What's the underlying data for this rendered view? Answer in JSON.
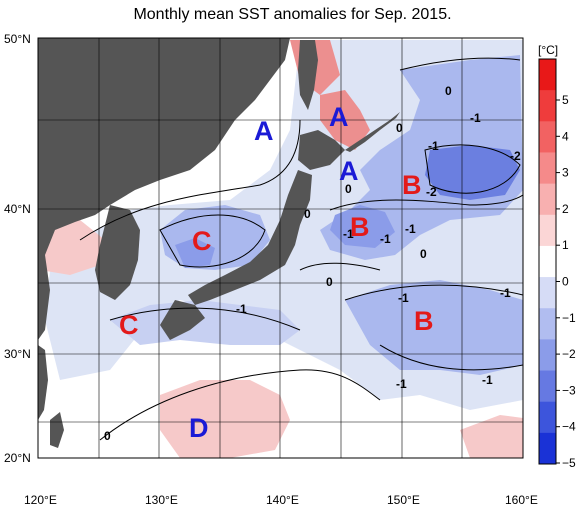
{
  "title": "Monthly mean SST anomalies for Sep. 2015.",
  "colors": {
    "land": "#555555",
    "warm_light": "#f6c9c9",
    "warm_mid": "#ec8f8f",
    "cool_light": "#dde4f5",
    "cool_mid": "#aab8ee",
    "cool_dark": "#6b7fe0",
    "region_A": "#1a1ad6",
    "region_B": "#e31a1a",
    "region_C": "#e31a1a",
    "region_D": "#1a1ad6"
  },
  "axes": {
    "lat_ticks": [
      "50°N",
      "40°N",
      "30°N",
      "20°N"
    ],
    "lon_ticks": [
      "120°E",
      "130°E",
      "140°E",
      "150°E",
      "160°E"
    ]
  },
  "colorbar": {
    "unit": "[°C]",
    "labels": [
      "5",
      "4",
      "3",
      "2",
      "1",
      "0",
      "−1",
      "−2",
      "−3",
      "−4",
      "−5"
    ],
    "colors": [
      "#e81818",
      "#ef3c3c",
      "#f26262",
      "#f58a8a",
      "#f8b0b0",
      "#fbd6d6",
      "#ffffff",
      "#d6dcf6",
      "#b1bdf0",
      "#8b9ce9",
      "#6679e2",
      "#3d55dc",
      "#1a32d6"
    ]
  },
  "region_labels": [
    {
      "text": "A",
      "type": "A"
    },
    {
      "text": "A",
      "type": "A"
    },
    {
      "text": "A",
      "type": "A"
    },
    {
      "text": "B",
      "type": "B"
    },
    {
      "text": "B",
      "type": "B"
    },
    {
      "text": "B",
      "type": "B"
    },
    {
      "text": "C",
      "type": "C"
    },
    {
      "text": "C",
      "type": "C"
    },
    {
      "text": "D",
      "type": "D"
    }
  ],
  "contour_labels": [
    "0",
    "-1",
    "0",
    "-1",
    "-2",
    "-2",
    "0",
    "-1",
    "-1",
    "-1",
    "0",
    "0",
    "-1",
    "-1",
    "0",
    "-1",
    "-1",
    "-1",
    "0"
  ]
}
